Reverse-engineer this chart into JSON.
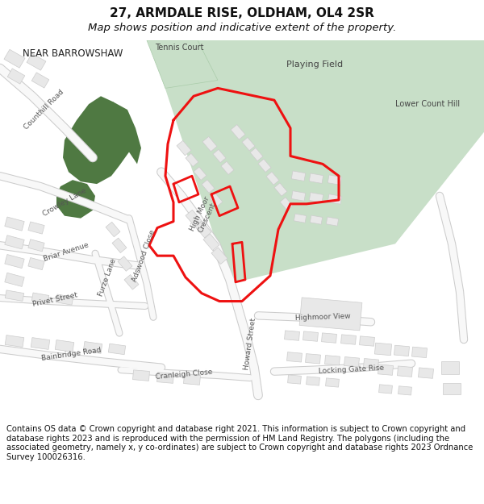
{
  "title": "27, ARMDALE RISE, OLDHAM, OL4 2SR",
  "subtitle": "Map shows position and indicative extent of the property.",
  "footer": "Contains OS data © Crown copyright and database right 2021. This information is subject to Crown copyright and database rights 2023 and is reproduced with the permission of HM Land Registry. The polygons (including the associated geometry, namely x, y co-ordinates) are subject to Crown copyright and database rights 2023 Ordnance Survey 100026316.",
  "map_bg": "#ffffff",
  "green_field_color": "#c8dfc8",
  "dark_green_color": "#4f7942",
  "building_color": "#e8e8e8",
  "building_edge": "#cccccc",
  "road_color": "#ffffff",
  "road_edge": "#d0d0d0",
  "red_outline": "#ee1111",
  "title_fontsize": 11,
  "subtitle_fontsize": 9.5,
  "footer_fontsize": 7.2,
  "title_color": "#111111",
  "label_color": "#555555",
  "area_label_color": "#555555"
}
